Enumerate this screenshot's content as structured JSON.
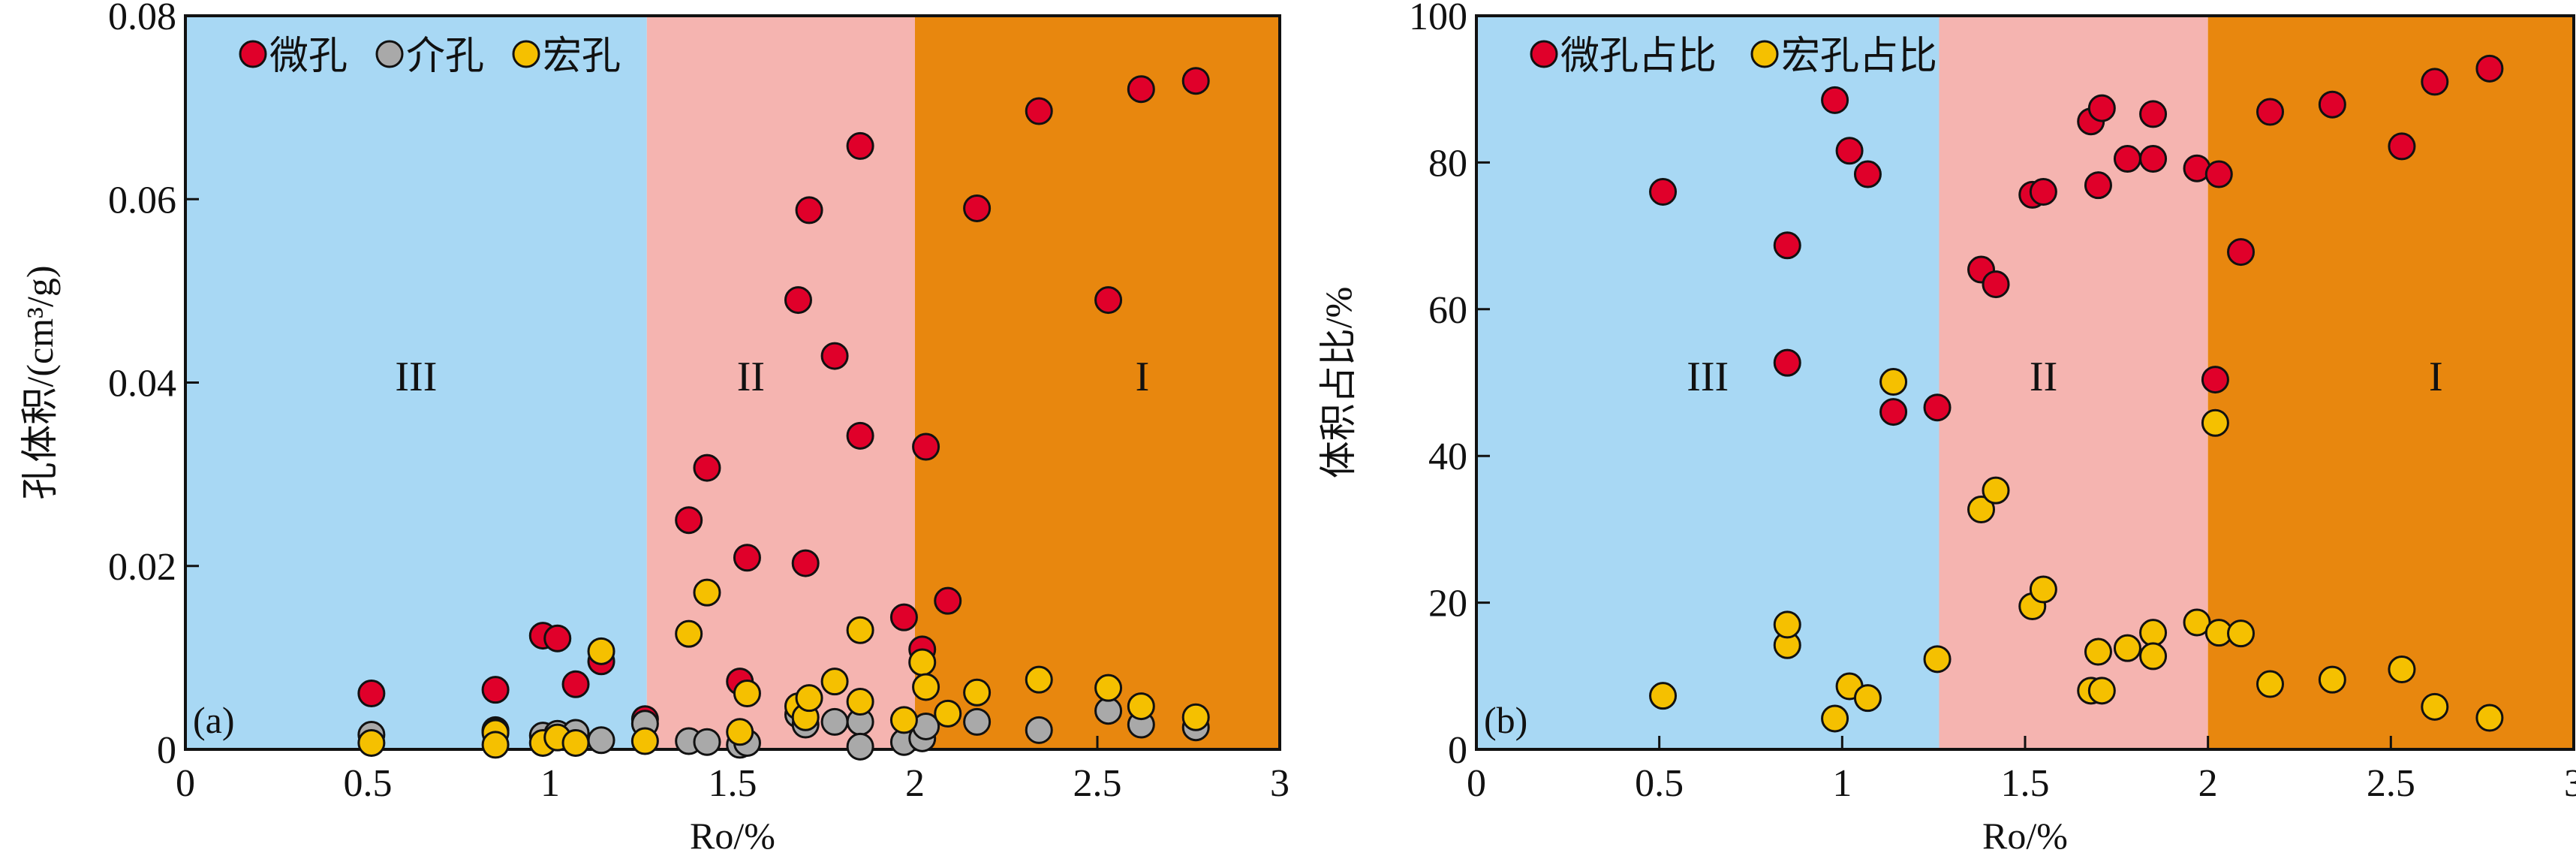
{
  "colors": {
    "zone_III": "#a8d8f4",
    "zone_II": "#f5b4b0",
    "zone_I": "#e8870e",
    "micro": "#e0002a",
    "meso": "#a9a9a9",
    "macro": "#f5c000"
  },
  "chart_data": [
    {
      "type": "scatter",
      "panel_label": "(a)",
      "xlabel": "Ro/%",
      "ylabel": "孔体积/(cm³/g)",
      "xlim": [
        0,
        3
      ],
      "ylim": [
        0,
        0.08
      ],
      "xticks": [
        "0",
        "0.5",
        "1",
        "1.5",
        "2",
        "2.5",
        "3"
      ],
      "yticks": [
        "0",
        "0.02",
        "0.04",
        "0.06",
        "0.08"
      ],
      "legend_position": "top-left",
      "zones": [
        {
          "label": "III",
          "from": 0,
          "to": 1.265,
          "color_key": "zone_III"
        },
        {
          "label": "II",
          "from": 1.265,
          "to": 2.0,
          "color_key": "zone_II"
        },
        {
          "label": "I",
          "from": 2.0,
          "to": 3,
          "color_key": "zone_I"
        }
      ],
      "series": [
        {
          "name": "微孔",
          "color_key": "micro",
          "x": [
            0.51,
            0.85,
            0.85,
            0.98,
            1.02,
            1.07,
            1.14,
            1.26,
            1.38,
            1.43,
            1.52,
            1.54,
            1.68,
            1.7,
            1.71,
            1.78,
            1.85,
            1.85,
            1.97,
            2.02,
            2.03,
            2.09,
            2.17,
            2.34,
            2.53,
            2.62,
            2.77
          ],
          "y": [
            0.0061,
            0.0065,
            0.0021,
            0.0124,
            0.0121,
            0.0071,
            0.0096,
            0.0033,
            0.025,
            0.0307,
            0.0074,
            0.0209,
            0.049,
            0.0203,
            0.0588,
            0.0429,
            0.0658,
            0.0342,
            0.0144,
            0.0109,
            0.033,
            0.0162,
            0.059,
            0.0696,
            0.049,
            0.072,
            0.0729
          ]
        },
        {
          "name": "介孔",
          "color_key": "meso",
          "x": [
            0.51,
            0.85,
            0.98,
            1.02,
            1.07,
            1.14,
            1.26,
            1.38,
            1.43,
            1.52,
            1.54,
            1.68,
            1.7,
            1.78,
            1.85,
            1.85,
            1.97,
            2.02,
            2.03,
            2.17,
            2.34,
            2.53,
            2.62,
            2.77
          ],
          "y": [
            0.0016,
            0.002,
            0.0015,
            0.0017,
            0.0018,
            0.001,
            0.0028,
            0.0009,
            0.0008,
            0.0005,
            0.0007,
            0.0038,
            0.0027,
            0.003,
            0.003,
            0.0003,
            0.0008,
            0.0012,
            0.0025,
            0.003,
            0.0021,
            0.0042,
            0.0027,
            0.0024
          ]
        },
        {
          "name": "宏孔",
          "color_key": "macro",
          "x": [
            0.51,
            0.85,
            0.85,
            0.98,
            1.02,
            1.07,
            1.14,
            1.26,
            1.38,
            1.43,
            1.52,
            1.54,
            1.68,
            1.7,
            1.71,
            1.78,
            1.85,
            1.85,
            1.97,
            2.02,
            2.03,
            2.09,
            2.17,
            2.34,
            2.53,
            2.62,
            2.77
          ],
          "y": [
            0.0007,
            0.0018,
            0.0005,
            0.0007,
            0.0013,
            0.0007,
            0.0107,
            0.0009,
            0.0126,
            0.0171,
            0.0019,
            0.0061,
            0.0047,
            0.0035,
            0.0056,
            0.0074,
            0.013,
            0.0052,
            0.0032,
            0.0095,
            0.0068,
            0.0039,
            0.0062,
            0.0076,
            0.0067,
            0.0047,
            0.0035
          ]
        }
      ]
    },
    {
      "type": "scatter",
      "panel_label": "(b)",
      "xlabel": "Ro/%",
      "ylabel": "体积占比/%",
      "xlim": [
        0,
        3
      ],
      "ylim": [
        0,
        100
      ],
      "xticks": [
        "0",
        "0.5",
        "1",
        "1.5",
        "2",
        "2.5",
        "3"
      ],
      "yticks": [
        "0",
        "20",
        "40",
        "60",
        "80",
        "100"
      ],
      "legend_position": "top-left",
      "zones": [
        {
          "label": "III",
          "from": 0,
          "to": 1.265,
          "color_key": "zone_III"
        },
        {
          "label": "II",
          "from": 1.265,
          "to": 2.0,
          "color_key": "zone_II"
        },
        {
          "label": "I",
          "from": 2.0,
          "to": 3,
          "color_key": "zone_I"
        }
      ],
      "series": [
        {
          "name": "微孔占比",
          "color_key": "micro",
          "x": [
            0.51,
            0.85,
            0.85,
            0.98,
            1.02,
            1.07,
            1.14,
            1.26,
            1.38,
            1.42,
            1.52,
            1.55,
            1.68,
            1.71,
            1.7,
            1.78,
            1.85,
            1.85,
            1.97,
            2.03,
            2.02,
            2.09,
            2.17,
            2.34,
            2.53,
            2.62,
            2.77
          ],
          "y": [
            76,
            68.7,
            52.7,
            88.5,
            81.6,
            78.4,
            46,
            46.6,
            65.4,
            63.4,
            75.6,
            76,
            85.6,
            87.4,
            76.9,
            80.5,
            80.5,
            86.6,
            79.2,
            78.4,
            50.4,
            67.8,
            86.9,
            87.9,
            82.2,
            91,
            92.8
          ]
        },
        {
          "name": "宏孔占比",
          "color_key": "macro",
          "x": [
            0.51,
            0.85,
            0.85,
            0.98,
            1.02,
            1.07,
            1.14,
            1.26,
            1.38,
            1.42,
            1.52,
            1.55,
            1.68,
            1.71,
            1.7,
            1.78,
            1.85,
            1.85,
            1.97,
            2.03,
            2.02,
            2.09,
            2.17,
            2.34,
            2.53,
            2.62,
            2.77
          ],
          "y": [
            7.3,
            14.2,
            17,
            4.2,
            8.6,
            7,
            50.1,
            12.3,
            32.7,
            35.3,
            19.5,
            21.8,
            8,
            8,
            13.3,
            13.8,
            15.9,
            12.7,
            17.3,
            15.9,
            44.5,
            15.8,
            8.9,
            9.5,
            10.9,
            5.8,
            4.3
          ]
        }
      ]
    }
  ]
}
